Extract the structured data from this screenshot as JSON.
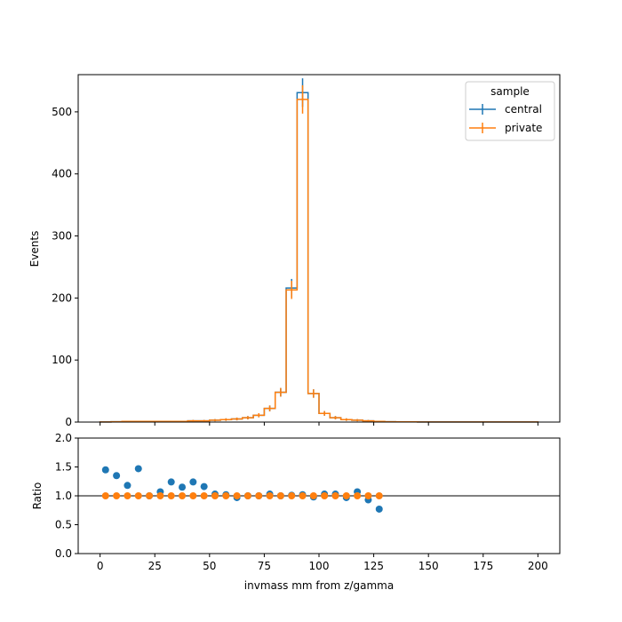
{
  "chart_data": [
    {
      "type": "step",
      "panel": "main",
      "xlabel": "",
      "ylabel": "Events",
      "xlim": [
        -10,
        210
      ],
      "ylim": [
        0,
        560
      ],
      "yticks": [
        0,
        100,
        200,
        300,
        400,
        500
      ],
      "xticks": [
        0,
        25,
        50,
        75,
        100,
        125,
        150,
        175,
        200
      ],
      "bin_edges": [
        0,
        5,
        10,
        15,
        20,
        25,
        30,
        35,
        40,
        45,
        50,
        55,
        60,
        65,
        70,
        75,
        80,
        85,
        90,
        95,
        100,
        105,
        110,
        115,
        120,
        125,
        130,
        135,
        140,
        145,
        150,
        155,
        160,
        165,
        170,
        175,
        180,
        185,
        190,
        195,
        200
      ],
      "legend": {
        "title": "sample",
        "loc": "upper right"
      },
      "series": [
        {
          "name": "central",
          "color": "#1f77b4",
          "values": [
            0.2,
            0.5,
            1,
            1,
            1,
            1,
            1,
            1,
            2,
            2,
            3,
            4,
            5,
            7,
            11,
            22,
            48,
            216,
            531,
            46,
            14,
            7,
            4,
            3,
            2,
            1,
            0.5,
            0.4,
            0.3,
            0.2,
            0.2,
            0.2,
            0.1,
            0.1,
            0.1,
            0.1,
            0.1,
            0.1,
            0.1,
            0.1
          ]
        },
        {
          "name": "private",
          "color": "#ff7f0e",
          "values": [
            0.2,
            0.5,
            1,
            1,
            1,
            1,
            1,
            1,
            2,
            2,
            3,
            4,
            5,
            7,
            11,
            22,
            48,
            213,
            520,
            46,
            14,
            7,
            4,
            3,
            2,
            1,
            0.5,
            0.4,
            0.3,
            0.2,
            0.2,
            0.2,
            0.1,
            0.1,
            0.1,
            0.1,
            0.1,
            0.1,
            0.1,
            0.1
          ]
        }
      ]
    },
    {
      "type": "scatter",
      "panel": "ratio",
      "xlabel": "invmass mm from z/gamma",
      "ylabel": "Ratio",
      "xlim": [
        -10,
        210
      ],
      "ylim": [
        0,
        2
      ],
      "yticks": [
        0.0,
        0.5,
        1.0,
        1.5,
        2.0
      ],
      "xticks": [
        0,
        25,
        50,
        75,
        100,
        125,
        150,
        175,
        200
      ],
      "reference_line": 1.0,
      "series": [
        {
          "name": "central",
          "color": "#1f77b4",
          "x": [
            2.5,
            7.5,
            12.5,
            17.5,
            22.5,
            27.5,
            32.5,
            37.5,
            42.5,
            47.5,
            52.5,
            57.5,
            62.5,
            67.5,
            72.5,
            77.5,
            82.5,
            87.5,
            92.5,
            97.5,
            102.5,
            107.5,
            112.5,
            117.5,
            122.5,
            127.5
          ],
          "y": [
            1.45,
            1.35,
            1.18,
            1.47,
            1.0,
            1.07,
            1.24,
            1.15,
            1.24,
            1.16,
            1.03,
            1.02,
            0.97,
            1.0,
            1.0,
            1.03,
            1.0,
            1.01,
            1.02,
            0.98,
            1.03,
            1.03,
            0.97,
            1.07,
            0.93,
            0.77
          ]
        },
        {
          "name": "private",
          "color": "#ff7f0e",
          "x": [
            2.5,
            7.5,
            12.5,
            17.5,
            22.5,
            27.5,
            32.5,
            37.5,
            42.5,
            47.5,
            52.5,
            57.5,
            62.5,
            67.5,
            72.5,
            77.5,
            82.5,
            87.5,
            92.5,
            97.5,
            102.5,
            107.5,
            112.5,
            117.5,
            122.5,
            127.5
          ],
          "y": [
            1,
            1,
            1,
            1,
            1,
            1,
            1,
            1,
            1,
            1,
            1,
            1,
            1,
            1,
            1,
            1,
            1,
            1,
            1,
            1,
            1,
            1,
            1,
            1,
            1,
            1
          ]
        }
      ]
    }
  ]
}
